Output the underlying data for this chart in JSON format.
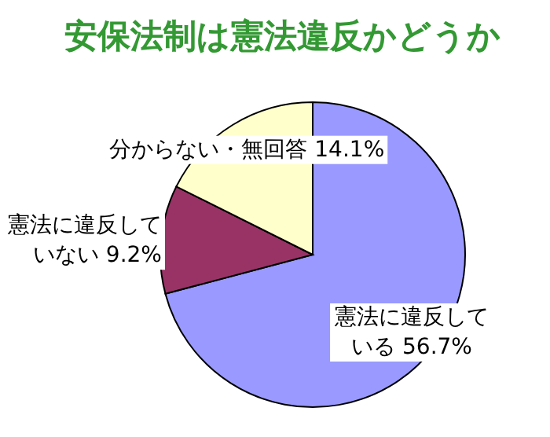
{
  "chart_data": {
    "type": "pie",
    "title": "安保法制は憲法違反かどうか",
    "categories": [
      "憲法に違反している",
      "憲法に違反していない",
      "分からない・無回答"
    ],
    "values": [
      56.7,
      9.2,
      14.1
    ],
    "value_labels": [
      "56.7%",
      "9.2%",
      "14.1%"
    ],
    "colors": [
      "#9999ff",
      "#993366",
      "#ffffcc"
    ]
  }
}
